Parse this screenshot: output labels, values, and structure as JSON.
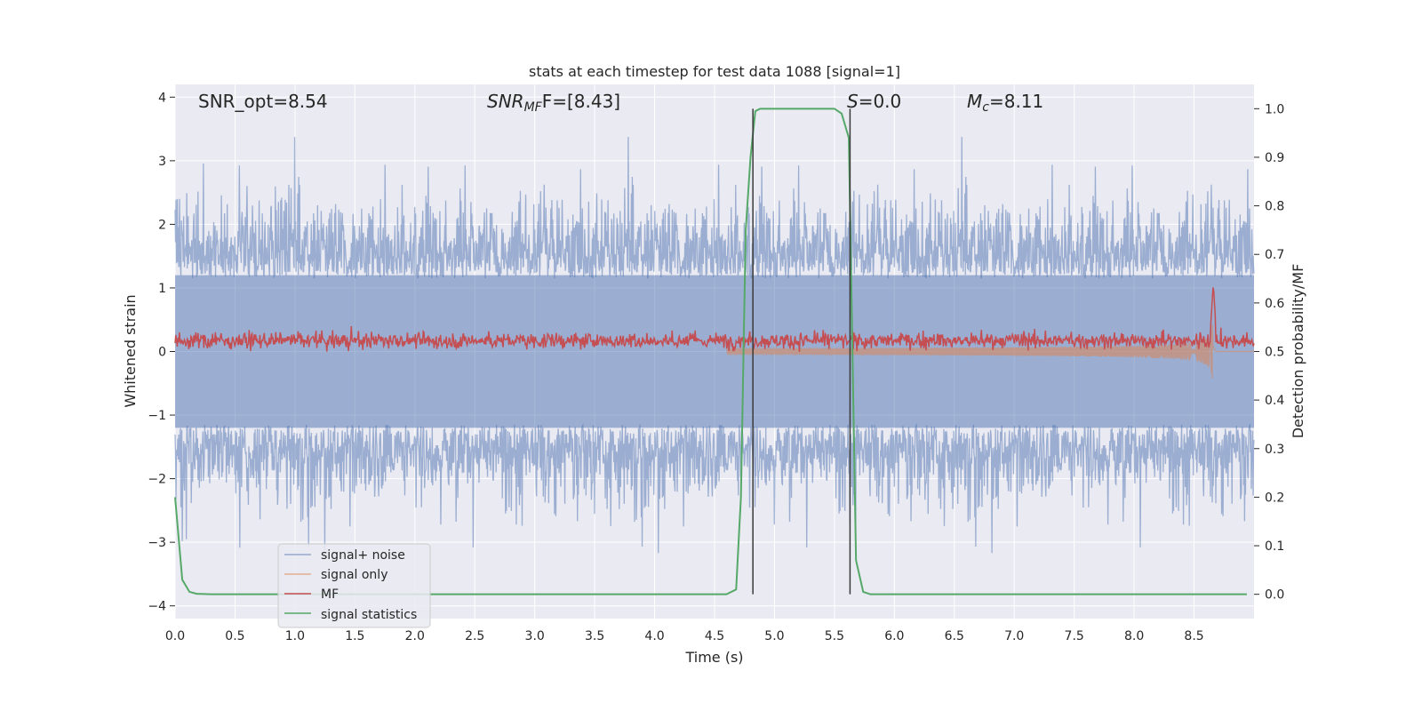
{
  "chart_data": {
    "type": "line",
    "title": "stats at each timestep for test data 1088 [signal=1]",
    "xlabel": "Time (s)",
    "ylabel_left": "Whitened strain",
    "ylabel_right": "Detection probability/MF",
    "xlim": [
      0.0,
      9.0
    ],
    "ylim_left": [
      -4.2,
      4.2
    ],
    "ylim_right": [
      -0.05,
      1.05
    ],
    "x_ticks": [
      "0.0",
      "0.5",
      "1.0",
      "1.5",
      "2.0",
      "2.5",
      "3.0",
      "3.5",
      "4.0",
      "4.5",
      "5.0",
      "5.5",
      "6.0",
      "6.5",
      "7.0",
      "7.5",
      "8.0",
      "8.5"
    ],
    "x_tick_values": [
      0.0,
      0.5,
      1.0,
      1.5,
      2.0,
      2.5,
      3.0,
      3.5,
      4.0,
      4.5,
      5.0,
      5.5,
      6.0,
      6.5,
      7.0,
      7.5,
      8.0,
      8.5
    ],
    "y_left_ticks": [
      "−4",
      "−3",
      "−2",
      "−1",
      "0",
      "1",
      "2",
      "3",
      "4"
    ],
    "y_left_tick_values": [
      -4,
      -3,
      -2,
      -1,
      0,
      1,
      2,
      3,
      4
    ],
    "y_right_ticks": [
      "0.0",
      "0.1",
      "0.2",
      "0.3",
      "0.4",
      "0.5",
      "0.6",
      "0.7",
      "0.8",
      "0.9",
      "1.0"
    ],
    "y_right_tick_values": [
      0.0,
      0.1,
      0.2,
      0.3,
      0.4,
      0.5,
      0.6,
      0.7,
      0.8,
      0.9,
      1.0
    ],
    "grid": true,
    "legend_position": "lower-left",
    "annotations": {
      "snr_opt": "SNR_opt=8.54",
      "snr_mf_main": "SNR",
      "snr_mf_sub": "MF",
      "snr_mf_rest": "F=[8.43]",
      "s_main": "S",
      "s_rest": "=0.0",
      "mc_main": "M",
      "mc_sub": "c",
      "mc_rest": "=8.11"
    },
    "vertical_lines_x": [
      4.82,
      5.63
    ],
    "series": [
      {
        "name": "signal+ noise",
        "color": "#4c72b0",
        "axis": "left",
        "style": "noisy band (roughly ±1.7 with spikes to ±3.3)"
      },
      {
        "name": "signal only",
        "color": "#dd8452",
        "axis": "left",
        "style": "chirp, amplitude growing to ~0.9 at merger near 8.66 s"
      },
      {
        "name": "MF",
        "color": "#c44e52",
        "axis": "right",
        "style": "noisy trace near 0.52 with peak ~0.64 at 8.66 s"
      },
      {
        "name": "signal statistics",
        "color": "#55a868",
        "axis": "right",
        "x": [
          0.0,
          0.06,
          0.12,
          0.18,
          0.3,
          0.6,
          1.0,
          2.0,
          3.0,
          4.0,
          4.6,
          4.68,
          4.72,
          4.76,
          4.8,
          4.84,
          4.88,
          4.92,
          5.0,
          5.5,
          5.56,
          5.62,
          5.68,
          5.74,
          5.8,
          6.0,
          7.0,
          8.0,
          8.94
        ],
        "y": [
          0.2,
          0.03,
          0.005,
          0.001,
          0.0,
          0.0,
          0.0,
          0.0,
          0.0,
          0.0,
          0.0,
          0.01,
          0.2,
          0.75,
          0.9,
          0.995,
          1.0,
          1.0,
          1.0,
          1.0,
          0.99,
          0.94,
          0.07,
          0.005,
          0.0,
          0.0,
          0.0,
          0.0,
          0.0
        ]
      }
    ]
  }
}
